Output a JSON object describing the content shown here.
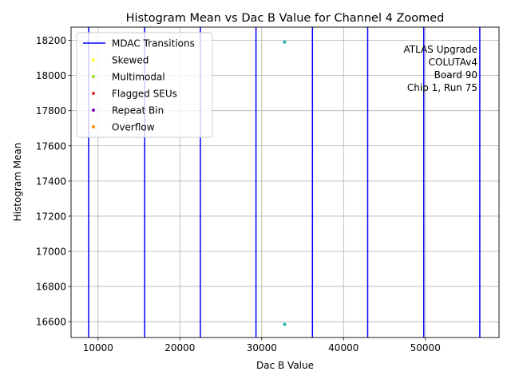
{
  "chart_data": {
    "type": "scatter",
    "title": "Histogram Mean vs Dac B Value for Channel 4 Zoomed",
    "xlabel": "Dac B Value",
    "ylabel": "Histogram Mean",
    "xlim": [
      6700,
      59000
    ],
    "ylim": [
      16510,
      18275
    ],
    "xticks": [
      10000,
      20000,
      30000,
      40000,
      50000
    ],
    "xtick_labels": [
      "10000",
      "20000",
      "30000",
      "40000",
      "50000"
    ],
    "yticks": [
      16600,
      16800,
      17000,
      17200,
      17400,
      17600,
      17800,
      18000,
      18200
    ],
    "ytick_labels": [
      "16600",
      "16800",
      "17000",
      "17200",
      "17400",
      "17600",
      "17800",
      "18000",
      "18200"
    ],
    "grid": true,
    "legend_position": "upper-left",
    "mdac_transitions": {
      "name": "MDAC Transitions",
      "color": "#0000ff",
      "x": [
        8850,
        15700,
        22500,
        29300,
        36200,
        42950,
        49800,
        56650
      ]
    },
    "series": [
      {
        "name": "Skewed",
        "color": "#ffff33",
        "points": []
      },
      {
        "name": "Multimodal",
        "color": "#99e62e",
        "points": []
      },
      {
        "name": "Flagged SEUs",
        "color": "#e62e2e",
        "points": []
      },
      {
        "name": "Repeat Bin",
        "color": "#8000b3",
        "points": []
      },
      {
        "name": "Overflow",
        "color": "#ff8c00",
        "points": []
      },
      {
        "name": "",
        "color": "#20b2aa",
        "points": [
          [
            32800,
            18190
          ],
          [
            32800,
            16585
          ]
        ]
      }
    ],
    "annotation": [
      "ATLAS Upgrade",
      "COLUTAv4",
      "Board 90",
      "Chip 1, Run 75"
    ]
  }
}
